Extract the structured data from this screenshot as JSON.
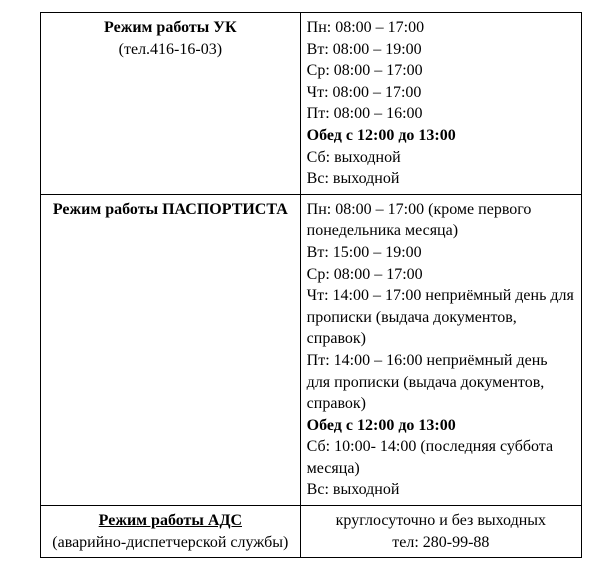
{
  "rows": [
    {
      "left": {
        "title": "Режим работы УК",
        "title_bold": true,
        "title_underline": false,
        "sub": "(тел.416-16-03)"
      },
      "right_center": false,
      "right": [
        {
          "text": "Пн: 08:00 – 17:00",
          "bold": false
        },
        {
          "text": "Вт: 08:00 – 19:00",
          "bold": false
        },
        {
          "text": "Ср: 08:00 – 17:00",
          "bold": false
        },
        {
          "text": "Чт: 08:00 – 17:00",
          "bold": false
        },
        {
          "text": "Пт: 08:00 – 16:00",
          "bold": false
        },
        {
          "text": "Обед с 12:00 до 13:00",
          "bold": true
        },
        {
          "text": "Сб: выходной",
          "bold": false
        },
        {
          "text": "Вс: выходной",
          "bold": false
        }
      ]
    },
    {
      "left": {
        "title": "Режим работы ПАСПОРТИСТА",
        "title_bold": true,
        "title_underline": false,
        "sub": ""
      },
      "right_center": false,
      "right": [
        {
          "text": "Пн: 08:00 – 17:00 (кроме первого понедельника месяца)",
          "bold": false
        },
        {
          "text": "Вт: 15:00 – 19:00",
          "bold": false
        },
        {
          "text": "Ср: 08:00 – 17:00",
          "bold": false
        },
        {
          "text": "Чт: 14:00 – 17:00 неприёмный день для прописки (выдача документов, справок)",
          "bold": false
        },
        {
          "text": "Пт: 14:00 – 16:00 неприёмный день для прописки (выдача документов, справок)",
          "bold": false
        },
        {
          "text": "Обед с 12:00 до 13:00",
          "bold": true
        },
        {
          "text": "Сб: 10:00- 14:00 (последняя суббота месяца)",
          "bold": false
        },
        {
          "text": "Вс: выходной",
          "bold": false
        }
      ]
    },
    {
      "left": {
        "title": "Режим работы АДС",
        "title_bold": true,
        "title_underline": true,
        "sub": "(аварийно-диспетчерской службы)"
      },
      "right_center": true,
      "right": [
        {
          "text": "круглосуточно и без выходных",
          "bold": false
        },
        {
          "text": "тел: 280-99-88",
          "bold": false
        }
      ]
    }
  ]
}
